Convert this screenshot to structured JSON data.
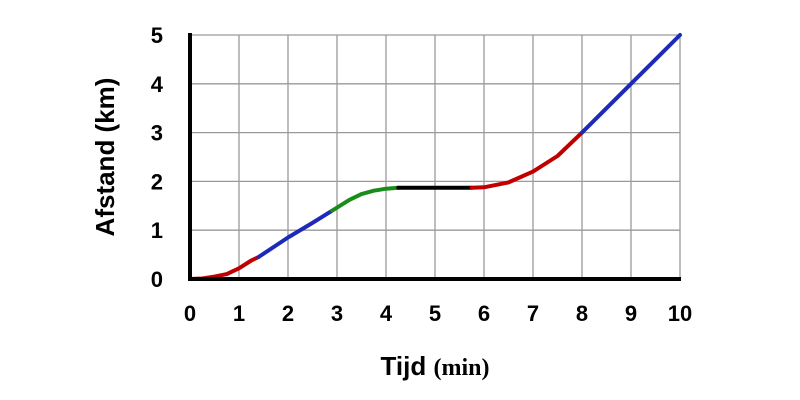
{
  "chart_data": {
    "type": "line",
    "title": "",
    "xlabel": "Tijd",
    "xunit": "(min)",
    "ylabel": "Afstand (km)",
    "xlim": [
      0,
      10
    ],
    "ylim": [
      0,
      5
    ],
    "x_ticks": [
      "0",
      "1",
      "2",
      "3",
      "4",
      "5",
      "6",
      "7",
      "8",
      "9",
      "10"
    ],
    "y_ticks": [
      "0",
      "1",
      "2",
      "3",
      "4",
      "5"
    ],
    "grid": true,
    "series": [
      {
        "color": "#c00000",
        "points": [
          [
            0,
            0
          ],
          [
            0.25,
            0.01
          ],
          [
            0.5,
            0.05
          ],
          [
            0.75,
            0.1
          ],
          [
            1,
            0.22
          ],
          [
            1.25,
            0.38
          ],
          [
            1.4,
            0.45
          ]
        ]
      },
      {
        "color": "#1c2ab8",
        "points": [
          [
            1.4,
            0.45
          ],
          [
            2,
            0.85
          ],
          [
            2.5,
            1.15
          ],
          [
            2.9,
            1.4
          ]
        ]
      },
      {
        "color": "#1a8c1a",
        "points": [
          [
            2.9,
            1.4
          ],
          [
            3.25,
            1.62
          ],
          [
            3.5,
            1.74
          ],
          [
            3.75,
            1.81
          ],
          [
            4,
            1.85
          ],
          [
            4.25,
            1.87
          ]
        ]
      },
      {
        "color": "#000000",
        "points": [
          [
            4.25,
            1.87
          ],
          [
            5,
            1.87
          ],
          [
            5.75,
            1.87
          ]
        ]
      },
      {
        "color": "#c00000",
        "points": [
          [
            5.75,
            1.87
          ],
          [
            6,
            1.88
          ],
          [
            6.5,
            1.98
          ],
          [
            7,
            2.2
          ],
          [
            7.5,
            2.52
          ],
          [
            8,
            3.0
          ]
        ]
      },
      {
        "color": "#1c2ab8",
        "points": [
          [
            8,
            3.0
          ],
          [
            8.5,
            3.5
          ],
          [
            9,
            4.0
          ],
          [
            9.5,
            4.5
          ],
          [
            10,
            5.0
          ]
        ]
      }
    ]
  }
}
